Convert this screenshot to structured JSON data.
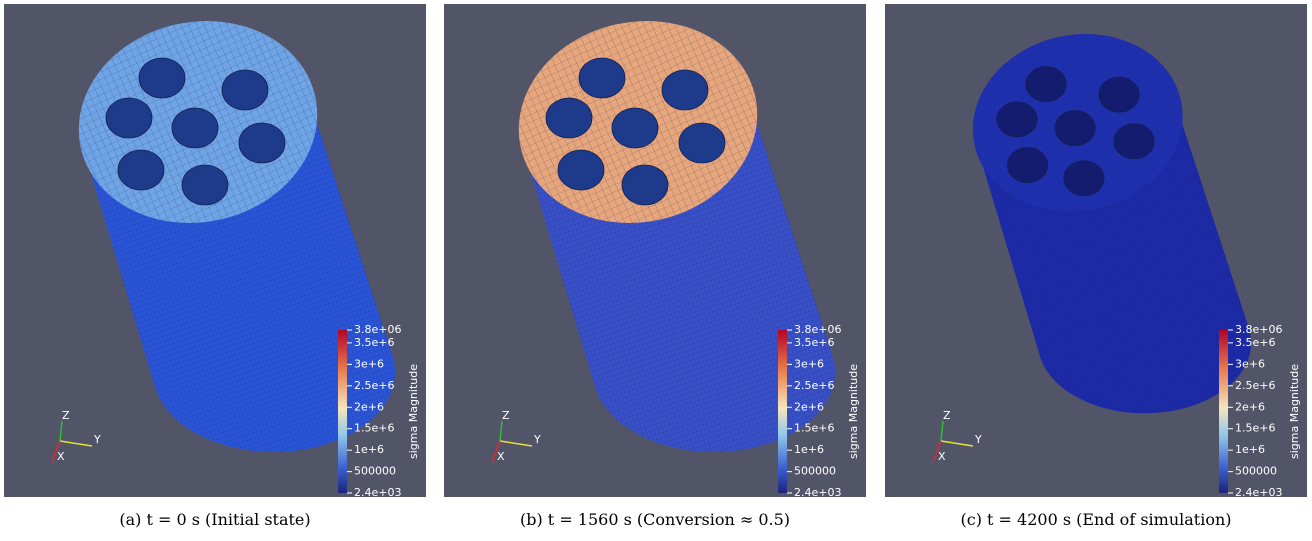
{
  "panels": [
    {
      "caption": "(a) t = 0 s (Initial state)"
    },
    {
      "caption": "(b) t = 1560 s (Conversion ≈ 0.5)"
    },
    {
      "caption": "(c) t = 4200 s (End of simulation)"
    }
  ],
  "colorbar": {
    "title": "sigma Magnitude",
    "range": [
      2400,
      3800000
    ],
    "ticks": [
      {
        "value": 3800000,
        "label": "3.8e+06"
      },
      {
        "value": 3500000,
        "label": "3.5e+6"
      },
      {
        "value": 3000000,
        "label": "3e+6"
      },
      {
        "value": 2500000,
        "label": "2.5e+6"
      },
      {
        "value": 2000000,
        "label": "2e+6"
      },
      {
        "value": 1500000,
        "label": "1.5e+6"
      },
      {
        "value": 1000000,
        "label": "1e+6"
      },
      500000,
      {
        "value": 2400,
        "label": "2.4e+03"
      }
    ]
  },
  "axes": {
    "z": "Z",
    "y": "Y",
    "x": "X"
  }
}
